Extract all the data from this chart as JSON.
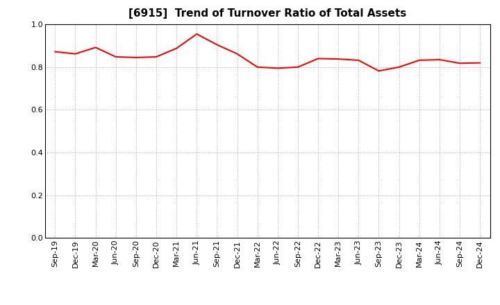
{
  "title": "[6915]  Trend of Turnover Ratio of Total Assets",
  "x_labels": [
    "Sep-19",
    "Dec-19",
    "Mar-20",
    "Jun-20",
    "Sep-20",
    "Dec-20",
    "Mar-21",
    "Jun-21",
    "Sep-21",
    "Dec-21",
    "Mar-22",
    "Jun-22",
    "Sep-22",
    "Dec-22",
    "Mar-23",
    "Jun-23",
    "Sep-23",
    "Dec-23",
    "Mar-24",
    "Jun-24",
    "Sep-24",
    "Dec-24"
  ],
  "y_values": [
    0.872,
    0.862,
    0.892,
    0.848,
    0.845,
    0.848,
    0.888,
    0.955,
    0.905,
    0.862,
    0.8,
    0.795,
    0.8,
    0.84,
    0.838,
    0.832,
    0.782,
    0.8,
    0.832,
    0.835,
    0.818,
    0.82
  ],
  "line_color": "#ff0000",
  "line_width": 1.5,
  "ylim": [
    0.0,
    1.0
  ],
  "yticks": [
    0.0,
    0.2,
    0.4,
    0.6,
    0.8,
    1.0
  ],
  "title_fontsize": 11,
  "tick_fontsize": 8,
  "background_color": "#ffffff",
  "grid_color": "#aaaaaa",
  "spine_color": "#000000"
}
